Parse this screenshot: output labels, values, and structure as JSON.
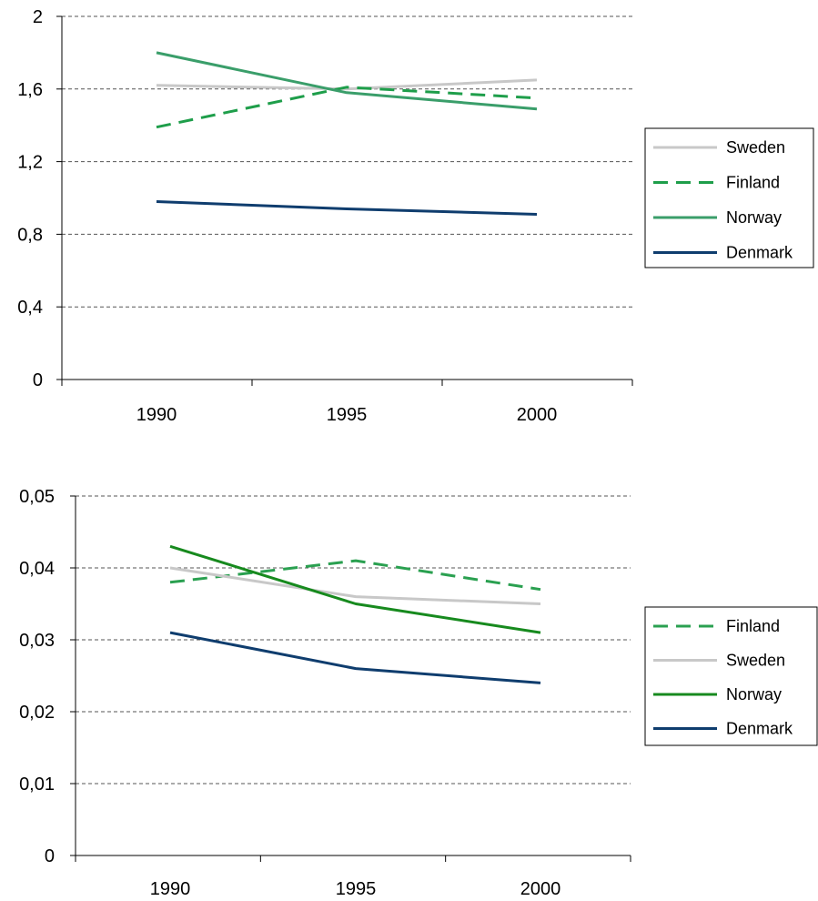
{
  "chart_data": [
    {
      "type": "line",
      "categories": [
        "1990",
        "1995",
        "2000"
      ],
      "ylim": [
        0,
        2
      ],
      "yticks": [
        "0",
        "0,4",
        "0,8",
        "1,2",
        "1,6",
        "2"
      ],
      "ytick_values": [
        0,
        0.4,
        0.8,
        1.2,
        1.6,
        2
      ],
      "grid": true,
      "legend_position": "right",
      "series": [
        {
          "name": "Sweden",
          "values": [
            1.62,
            1.6,
            1.65
          ],
          "color": "#c8c8c8",
          "dash": "solid"
        },
        {
          "name": "Finland",
          "values": [
            1.39,
            1.61,
            1.55
          ],
          "color": "#1e9e4a",
          "dash": "dashed"
        },
        {
          "name": "Norway",
          "values": [
            1.8,
            1.58,
            1.49
          ],
          "color": "#3a9e6a",
          "dash": "solid"
        },
        {
          "name": "Denmark",
          "values": [
            0.98,
            0.94,
            0.91
          ],
          "color": "#0f3d6e",
          "dash": "solid"
        }
      ]
    },
    {
      "type": "line",
      "categories": [
        "1990",
        "1995",
        "2000"
      ],
      "ylim": [
        0,
        0.05
      ],
      "yticks": [
        "0",
        "0,01",
        "0,02",
        "0,03",
        "0,04",
        "0,05"
      ],
      "ytick_values": [
        0,
        0.01,
        0.02,
        0.03,
        0.04,
        0.05
      ],
      "grid": true,
      "legend_position": "right",
      "series": [
        {
          "name": "Finland",
          "values": [
            0.038,
            0.041,
            0.037
          ],
          "color": "#2aa050",
          "dash": "dashed"
        },
        {
          "name": "Sweden",
          "values": [
            0.04,
            0.036,
            0.035
          ],
          "color": "#c8c8c8",
          "dash": "solid"
        },
        {
          "name": "Norway",
          "values": [
            0.043,
            0.035,
            0.031
          ],
          "color": "#178a1e",
          "dash": "solid"
        },
        {
          "name": "Denmark",
          "values": [
            0.031,
            0.026,
            0.024
          ],
          "color": "#0f3d6e",
          "dash": "solid"
        }
      ]
    }
  ]
}
